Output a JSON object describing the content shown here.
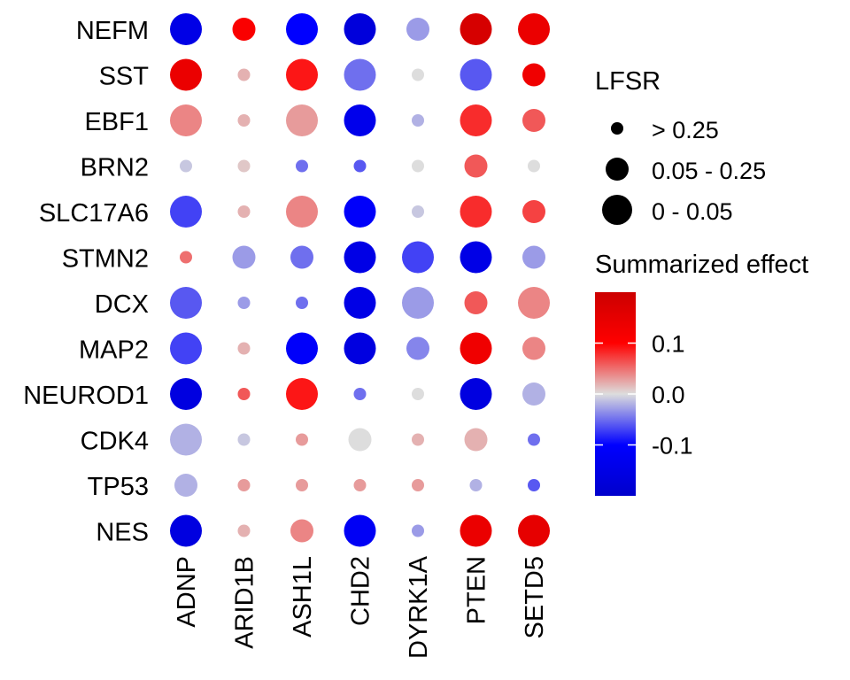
{
  "chart_data": {
    "type": "dotplot",
    "title": "",
    "xlabel": "",
    "ylabel": "",
    "rows": [
      "NEFM",
      "SST",
      "EBF1",
      "BRN2",
      "SLC17A6",
      "STMN2",
      "DCX",
      "MAP2",
      "NEUROD1",
      "CDK4",
      "TP53",
      "NES"
    ],
    "columns": [
      "ADNP",
      "ARID1B",
      "ASH1L",
      "CHD2",
      "DYRK1A",
      "PTEN",
      "SETD5"
    ],
    "effect": [
      [
        -0.15,
        0.11,
        -0.1,
        -0.17,
        -0.03,
        0.18,
        0.14
      ],
      [
        0.14,
        0.02,
        0.09,
        -0.05,
        0.0,
        -0.06,
        0.13
      ],
      [
        0.04,
        0.02,
        0.03,
        -0.14,
        -0.02,
        0.08,
        0.06
      ],
      [
        -0.01,
        0.01,
        -0.05,
        -0.06,
        0.0,
        0.06,
        0.0
      ],
      [
        -0.07,
        0.02,
        0.04,
        -0.11,
        -0.01,
        0.08,
        0.07
      ],
      [
        0.05,
        -0.03,
        -0.05,
        -0.15,
        -0.07,
        -0.15,
        -0.03
      ],
      [
        -0.06,
        -0.03,
        -0.05,
        -0.15,
        -0.03,
        0.06,
        0.04
      ],
      [
        -0.07,
        0.02,
        -0.11,
        -0.16,
        -0.04,
        0.13,
        0.04
      ],
      [
        -0.16,
        0.06,
        0.09,
        -0.05,
        0.0,
        -0.16,
        -0.02
      ],
      [
        -0.02,
        -0.01,
        0.03,
        0.0,
        0.02,
        0.02,
        -0.05
      ],
      [
        -0.02,
        0.03,
        0.03,
        0.03,
        0.03,
        -0.02,
        -0.06
      ],
      [
        -0.16,
        0.02,
        0.04,
        -0.12,
        -0.03,
        0.14,
        0.15
      ]
    ],
    "lfsr_class": [
      [
        "0-0.05",
        "0.05-0.25",
        "0-0.05",
        "0-0.05",
        "0.05-0.25",
        "0-0.05",
        "0-0.05"
      ],
      [
        "0-0.05",
        ">0.25",
        "0-0.05",
        "0-0.05",
        ">0.25",
        "0-0.05",
        "0.05-0.25"
      ],
      [
        "0-0.05",
        ">0.25",
        "0-0.05",
        "0-0.05",
        ">0.25",
        "0-0.05",
        "0.05-0.25"
      ],
      [
        ">0.25",
        ">0.25",
        ">0.25",
        ">0.25",
        ">0.25",
        "0.05-0.25",
        ">0.25"
      ],
      [
        "0-0.05",
        ">0.25",
        "0-0.05",
        "0-0.05",
        ">0.25",
        "0-0.05",
        "0.05-0.25"
      ],
      [
        ">0.25",
        "0.05-0.25",
        "0.05-0.25",
        "0-0.05",
        "0-0.05",
        "0-0.05",
        "0.05-0.25"
      ],
      [
        "0-0.05",
        ">0.25",
        ">0.25",
        "0-0.05",
        "0-0.05",
        "0.05-0.25",
        "0-0.05"
      ],
      [
        "0-0.05",
        ">0.25",
        "0-0.05",
        "0-0.05",
        "0.05-0.25",
        "0-0.05",
        "0.05-0.25"
      ],
      [
        "0-0.05",
        ">0.25",
        "0-0.05",
        ">0.25",
        ">0.25",
        "0-0.05",
        "0.05-0.25"
      ],
      [
        "0-0.05",
        ">0.25",
        ">0.25",
        "0.05-0.25",
        ">0.25",
        "0.05-0.25",
        ">0.25"
      ],
      [
        "0.05-0.25",
        ">0.25",
        ">0.25",
        ">0.25",
        ">0.25",
        ">0.25",
        ">0.25"
      ],
      [
        "0-0.05",
        ">0.25",
        "0.05-0.25",
        "0-0.05",
        ">0.25",
        "0-0.05",
        "0-0.05"
      ]
    ],
    "size_legend": {
      "title": "LFSR",
      "items": [
        {
          "key": ">0.25",
          "label": "> 0.25"
        },
        {
          "key": "0.05-0.25",
          "label": "0.05 - 0.25"
        },
        {
          "key": "0-0.05",
          "label": "0 - 0.05"
        }
      ]
    },
    "color_legend": {
      "title": "Summarized effect",
      "range": [
        -0.2,
        0.2
      ],
      "ticks": [
        {
          "value": 0.1,
          "label": "0.1"
        },
        {
          "value": 0.0,
          "label": "0.0"
        },
        {
          "value": -0.1,
          "label": "-0.1"
        }
      ],
      "colors": {
        "low": "#0000cc",
        "mid_low": "#0000ff",
        "mid": "#dddddd",
        "mid_high": "#ff0000",
        "high": "#cc0000"
      }
    }
  }
}
